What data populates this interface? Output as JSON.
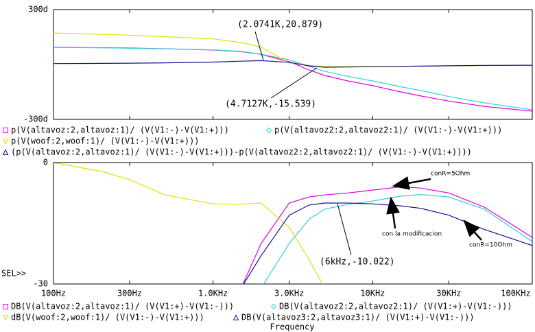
{
  "chart_data": [
    {
      "type": "line",
      "log_x": true,
      "x": [
        100,
        200,
        300,
        500,
        1000,
        1500,
        2000,
        3000,
        4000,
        5000,
        7000,
        10000,
        15000,
        20000,
        30000,
        50000,
        100000
      ],
      "xlim": [
        100,
        100000
      ],
      "ylim": [
        -300,
        300
      ],
      "yticks": [
        {
          "value": 300,
          "label": "300d"
        },
        {
          "value": -300,
          "label": "-300d"
        }
      ],
      "series": [
        {
          "name": "p(V(altavoz:2,altavoz:1)/ (V(V1:-)-V(V1:+)))",
          "color": "#e000e0",
          "marker": "square",
          "values": [
            94,
            92,
            90,
            86,
            79,
            70,
            55,
            15,
            -30,
            -60,
            -90,
            -116,
            -150,
            -172,
            -200,
            -229,
            -255
          ]
        },
        {
          "name": "p(V(altavoz2:2,altavoz2:1)/ (V(V1:-)-V(V1:+)))",
          "color": "#30d0d0",
          "marker": "diamond",
          "values": [
            93,
            91,
            89,
            86,
            80,
            72,
            56,
            25,
            -10,
            -37,
            -65,
            -90,
            -122,
            -142,
            -175,
            -210,
            -247
          ]
        },
        {
          "name": "p(V(woof:2,woof:1)/ (V(V1:-)-V(V1:+)))",
          "color": "#e0e000",
          "marker": "down",
          "values": [
            172,
            165,
            160,
            152,
            140,
            120,
            95,
            8,
            -5,
            -11,
            -11,
            -11,
            -10,
            -9,
            -8,
            -6,
            -4
          ]
        },
        {
          "name": "(p(V(altavoz:2,altavoz:1)/ (V(V1:-)-V(V1:+)))-p(V(altavoz2:2,altavoz2:1)/ (V(V1:-)-V(V1:+))))",
          "color": "#10108a",
          "marker": "up",
          "values": [
            5,
            6,
            7,
            9,
            13,
            18,
            21,
            12,
            -8,
            -15,
            -14,
            -12,
            -10,
            -9,
            -7,
            -5,
            -4
          ]
        }
      ],
      "annotations": [
        "(2.0741K,20.879)",
        "(4.7127K,-15.539)"
      ]
    },
    {
      "type": "line",
      "log_x": true,
      "x": [
        100,
        200,
        300,
        500,
        1000,
        1500,
        2000,
        3000,
        4000,
        5000,
        7000,
        10000,
        15000,
        20000,
        30000,
        50000,
        100000
      ],
      "xlim": [
        100,
        100000
      ],
      "xticks": [
        {
          "value": 100,
          "label": "100Hz"
        },
        {
          "value": 300,
          "label": "300Hz"
        },
        {
          "value": 1000,
          "label": "1.0KHz"
        },
        {
          "value": 3000,
          "label": "3.0KHz"
        },
        {
          "value": 10000,
          "label": "10KHz"
        },
        {
          "value": 30000,
          "label": "30KHz"
        },
        {
          "value": 100000,
          "label": "100KHz"
        }
      ],
      "ylim": [
        -30,
        0
      ],
      "yticks": [
        0,
        -30
      ],
      "xlabel": "Frequency",
      "cursor_label": "SEL>>",
      "series": [
        {
          "name": "DB(V(altavoz:2,altavoz:1)/ (V(V1:+)-V(V1:-)))",
          "color": "#e000e0",
          "marker": "square",
          "values": [
            null,
            null,
            null,
            null,
            null,
            -31,
            -20,
            -10,
            -8.5,
            -8,
            -7.5,
            -6.8,
            -6,
            -6.3,
            -7.5,
            -11,
            -18.5
          ]
        },
        {
          "name": "DB(V(altavoz2:2,altavoz2:1)/ (V(V1:+)-V(V1:-)))",
          "color": "#30d0d0",
          "marker": "diamond",
          "values": [
            null,
            null,
            null,
            null,
            null,
            null,
            -31,
            -20,
            -14,
            -11.5,
            -10.3,
            -9.5,
            -8.3,
            -7.9,
            -8.5,
            -11.5,
            -19.5
          ]
        },
        {
          "name": "dB(V(woof:2,woof:1)/ (V(V1:-)-V(V1:+)))",
          "color": "#e0e000",
          "marker": "down",
          "values": [
            0,
            -2.2,
            -4.2,
            -8,
            -10.2,
            -10.3,
            -10,
            -16,
            -24,
            -31,
            null,
            null,
            null,
            null,
            null,
            null,
            null
          ]
        },
        {
          "name": "DB(V(altavoz3:2,altavoz3:1)/ (V(V1:+)-V(V1:-)))",
          "color": "#10108a",
          "marker": "up",
          "values": [
            null,
            null,
            null,
            null,
            null,
            -31,
            -23,
            -13,
            -10.5,
            -10,
            -10,
            -10.2,
            -10.7,
            -11.3,
            -13,
            -16.5,
            -20.5
          ]
        }
      ],
      "annotations": [
        "(6kHz,-10.022)",
        "conR=5Ohm",
        "con la modificacion",
        "conR=10Ohm"
      ]
    }
  ]
}
